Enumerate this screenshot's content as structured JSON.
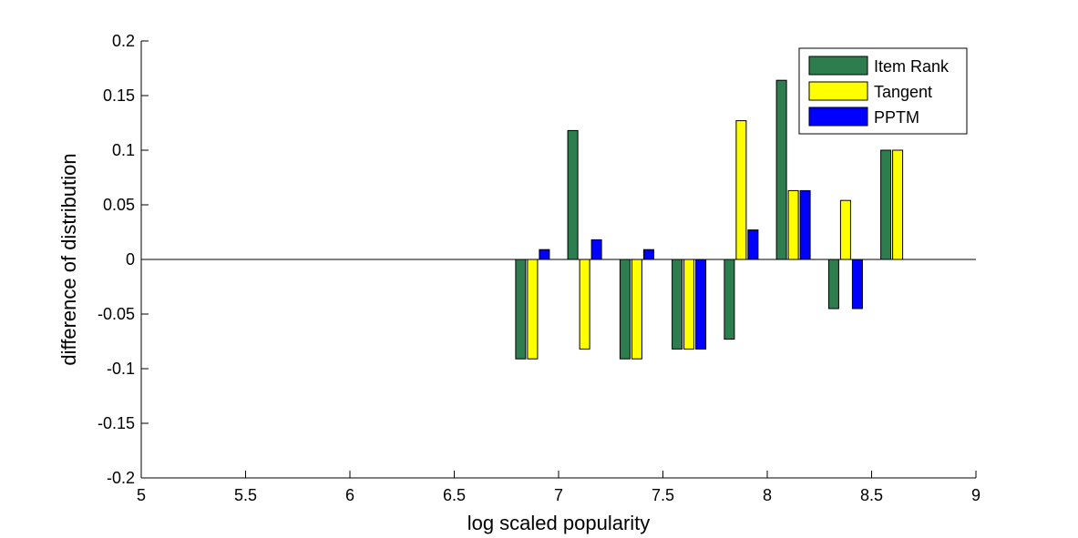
{
  "chart_data": {
    "type": "bar",
    "title": "",
    "xlabel": "log scaled popularity",
    "ylabel": "difference of distribution",
    "xlim": [
      5,
      9
    ],
    "ylim": [
      -0.2,
      0.2
    ],
    "xticks": [
      "5",
      "5.5",
      "6",
      "6.5",
      "7",
      "7.5",
      "8",
      "8.5",
      "9"
    ],
    "yticks": [
      "0.2",
      "0.15",
      "0.1",
      "0.05",
      "0",
      "-0.05",
      "-0.1",
      "-0.15",
      "-0.2"
    ],
    "grid": false,
    "legend_position": "top-right",
    "x": [
      6.875,
      7.125,
      7.375,
      7.625,
      7.875,
      8.125,
      8.375,
      8.625
    ],
    "series": [
      {
        "name": "Item Rank",
        "color": "#2e7d4f",
        "values": [
          -0.091,
          0.118,
          -0.091,
          -0.082,
          -0.073,
          0.164,
          -0.045,
          0.1
        ]
      },
      {
        "name": "Tangent",
        "color": "#ffff00",
        "values": [
          -0.091,
          -0.082,
          -0.091,
          -0.082,
          0.127,
          0.063,
          0.054,
          0.1
        ]
      },
      {
        "name": "PPTM",
        "color": "#0000ff",
        "values": [
          0.009,
          0.018,
          0.009,
          -0.082,
          0.027,
          0.063,
          -0.045,
          0
        ]
      }
    ]
  }
}
